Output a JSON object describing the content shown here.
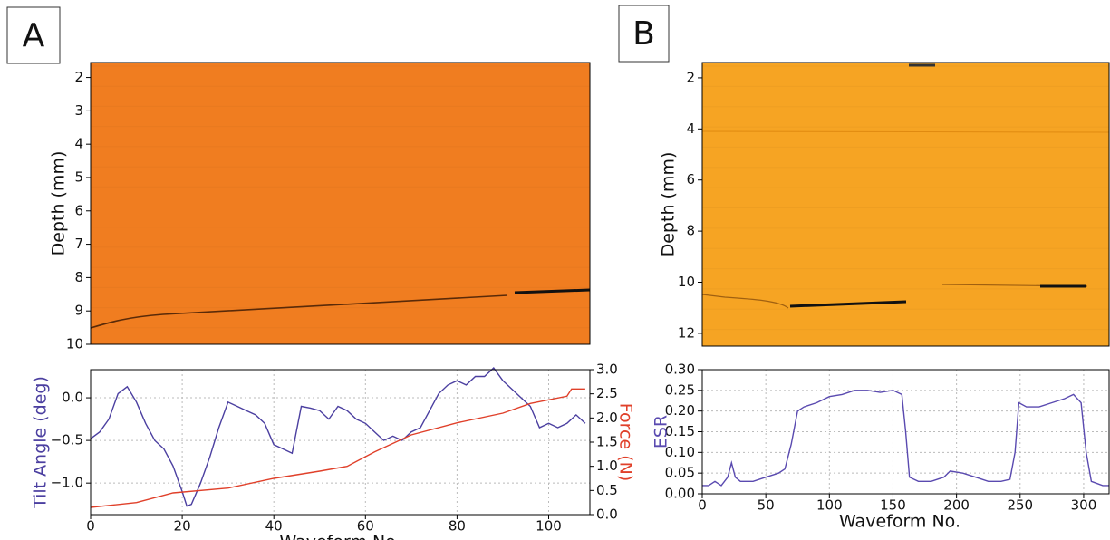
{
  "chart_data": [
    {
      "type": "image",
      "panel_label": "A",
      "color": "#f07d20",
      "ylabel": "Depth (mm)",
      "yaxis_inverted": true,
      "ylim": [
        1.55,
        10
      ],
      "yticks": [
        2,
        3,
        4,
        5,
        6,
        7,
        8,
        9,
        10
      ]
    },
    {
      "type": "line",
      "xlabel": "Waveform No.",
      "ylabel": "Tilt Angle (deg)",
      "y2label": "Force (N)",
      "grid": true,
      "xlim": [
        0,
        109
      ],
      "xticks": [
        0,
        20,
        40,
        60,
        80,
        100
      ],
      "ylim": [
        -1.37,
        0.33
      ],
      "yticks": [
        {
          "value": -1.0,
          "label": "−1.0"
        },
        {
          "value": -0.5,
          "label": "−0.5"
        },
        {
          "value": 0.0,
          "label": "0.0"
        }
      ],
      "y2lim": [
        0,
        3
      ],
      "y2ticks": [
        {
          "value": 0,
          "label": "0.0"
        },
        {
          "value": 0.5,
          "label": "0.5"
        },
        {
          "value": 1,
          "label": "1.0"
        },
        {
          "value": 1.5,
          "label": "1.5"
        },
        {
          "value": 2,
          "label": "2.0"
        },
        {
          "value": 2.5,
          "label": "2.5"
        },
        {
          "value": 3,
          "label": "3.0"
        }
      ],
      "series": [
        {
          "color": "#4b3fa0",
          "x": [
            0,
            2,
            4,
            6,
            8,
            10,
            12,
            14,
            16,
            18,
            20,
            21,
            22,
            24,
            26,
            28,
            30,
            32,
            34,
            36,
            38,
            40,
            42,
            44,
            46,
            48,
            50,
            52,
            54,
            56,
            58,
            60,
            62,
            64,
            66,
            68,
            70,
            72,
            74,
            76,
            78,
            80,
            82,
            84,
            86,
            88,
            90,
            92,
            94,
            96,
            98,
            100,
            102,
            104,
            106,
            108
          ],
          "values": [
            -0.48,
            -0.4,
            -0.25,
            0.05,
            0.13,
            -0.05,
            -0.3,
            -0.5,
            -0.6,
            -0.8,
            -1.1,
            -1.27,
            -1.25,
            -1.0,
            -0.7,
            -0.35,
            -0.05,
            -0.1,
            -0.15,
            -0.2,
            -0.3,
            -0.55,
            -0.6,
            -0.65,
            -0.1,
            -0.12,
            -0.15,
            -0.25,
            -0.1,
            -0.15,
            -0.25,
            -0.3,
            -0.4,
            -0.5,
            -0.45,
            -0.5,
            -0.4,
            -0.35,
            -0.15,
            0.05,
            0.15,
            0.2,
            0.15,
            0.25,
            0.25,
            0.35,
            0.2,
            0.1,
            0.0,
            -0.1,
            -0.35,
            -0.3,
            -0.35,
            -0.3,
            -0.2,
            -0.3
          ]
        },
        {
          "color": "#e0402a",
          "axis": "y2",
          "x": [
            0,
            10,
            18,
            30,
            40,
            50,
            56,
            62,
            70,
            80,
            90,
            96,
            104,
            105,
            108
          ],
          "values": [
            0.15,
            0.25,
            0.45,
            0.55,
            0.75,
            0.9,
            1.0,
            1.3,
            1.65,
            1.9,
            2.1,
            2.3,
            2.45,
            2.6,
            2.6
          ]
        }
      ]
    },
    {
      "type": "image",
      "panel_label": "B",
      "color": "#f6a423",
      "ylabel": "Depth (mm)",
      "yaxis_inverted": true,
      "ylim": [
        1.4,
        12.5
      ],
      "yticks": [
        2,
        4,
        6,
        8,
        10,
        12
      ]
    },
    {
      "type": "line",
      "xlabel": "Waveform No.",
      "ylabel": "ESR",
      "grid": true,
      "xlim": [
        0,
        320
      ],
      "xticks": [
        0,
        50,
        100,
        150,
        200,
        250,
        300
      ],
      "ylim": [
        0,
        0.3
      ],
      "yticks": [
        {
          "value": 0,
          "label": "0.00"
        },
        {
          "value": 0.05,
          "label": "0.05"
        },
        {
          "value": 0.1,
          "label": "0.10"
        },
        {
          "value": 0.15,
          "label": "0.15"
        },
        {
          "value": 0.2,
          "label": "0.20"
        },
        {
          "value": 0.25,
          "label": "0.25"
        },
        {
          "value": 0.3,
          "label": "0.30"
        }
      ],
      "series": [
        {
          "color": "#5a4ab0",
          "x": [
            0,
            5,
            10,
            15,
            20,
            23,
            26,
            30,
            40,
            50,
            60,
            65,
            70,
            75,
            80,
            90,
            100,
            110,
            120,
            130,
            140,
            150,
            157,
            160,
            163,
            170,
            180,
            190,
            195,
            205,
            215,
            225,
            235,
            242,
            246,
            249,
            255,
            265,
            275,
            285,
            292,
            298,
            302,
            306,
            315,
            320
          ],
          "values": [
            0.02,
            0.02,
            0.03,
            0.02,
            0.04,
            0.075,
            0.04,
            0.03,
            0.03,
            0.04,
            0.05,
            0.06,
            0.12,
            0.2,
            0.21,
            0.22,
            0.235,
            0.24,
            0.25,
            0.25,
            0.245,
            0.25,
            0.24,
            0.15,
            0.04,
            0.03,
            0.03,
            0.04,
            0.055,
            0.05,
            0.04,
            0.03,
            0.03,
            0.035,
            0.1,
            0.22,
            0.21,
            0.21,
            0.22,
            0.23,
            0.24,
            0.22,
            0.1,
            0.03,
            0.02,
            0.02
          ]
        }
      ]
    }
  ]
}
